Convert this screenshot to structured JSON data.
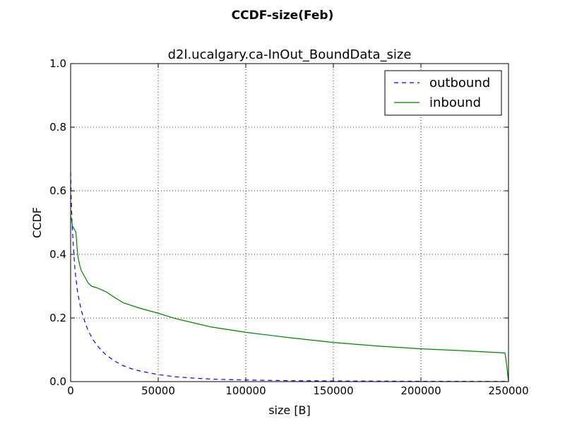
{
  "figure": {
    "suptitle": "CCDF-size(Feb)"
  },
  "chart_data": {
    "type": "line",
    "title": "d2l.ucalgary.ca-InOut_BoundData_size",
    "xlabel": "size [B]",
    "ylabel": "CCDF",
    "xlim": [
      0,
      250000
    ],
    "ylim": [
      0,
      1.0
    ],
    "xticks": [
      0,
      50000,
      100000,
      150000,
      200000,
      250000
    ],
    "xtick_labels": [
      "0",
      "50000",
      "100000",
      "150000",
      "200000",
      "250000"
    ],
    "yticks": [
      0.0,
      0.2,
      0.4,
      0.6,
      0.8,
      1.0
    ],
    "ytick_labels": [
      "0.0",
      "0.2",
      "0.4",
      "0.6",
      "0.8",
      "1.0"
    ],
    "grid": true,
    "legend_position": "top-right",
    "series": [
      {
        "name": "outbound",
        "color": "#0000ff",
        "linestyle": "dashed",
        "x": [
          0,
          300,
          800,
          1500,
          2500,
          4000,
          6000,
          8000,
          10000,
          13000,
          16000,
          20000,
          25000,
          30000,
          35000,
          40000,
          50000,
          60000,
          70000,
          80000,
          100000,
          125000,
          150000,
          175000,
          200000,
          225000,
          250000
        ],
        "y": [
          0.66,
          0.58,
          0.5,
          0.43,
          0.35,
          0.28,
          0.225,
          0.19,
          0.16,
          0.13,
          0.108,
          0.085,
          0.065,
          0.05,
          0.04,
          0.033,
          0.022,
          0.015,
          0.011,
          0.008,
          0.005,
          0.003,
          0.002,
          0.0015,
          0.001,
          0.0008,
          0.0005
        ]
      },
      {
        "name": "inbound",
        "color": "#008000",
        "linestyle": "solid",
        "x": [
          0,
          500,
          1000,
          2000,
          3000,
          4000,
          5000,
          6000,
          8000,
          10000,
          12000,
          15000,
          20000,
          25000,
          30000,
          40000,
          50000,
          60000,
          70000,
          80000,
          100000,
          125000,
          150000,
          175000,
          200000,
          225000,
          248000,
          249000,
          250000
        ],
        "y": [
          0.52,
          0.51,
          0.49,
          0.48,
          0.47,
          0.4,
          0.37,
          0.35,
          0.33,
          0.31,
          0.3,
          0.295,
          0.283,
          0.265,
          0.248,
          0.23,
          0.215,
          0.198,
          0.185,
          0.172,
          0.155,
          0.138,
          0.123,
          0.112,
          0.103,
          0.097,
          0.09,
          0.05,
          0.0
        ]
      }
    ]
  }
}
